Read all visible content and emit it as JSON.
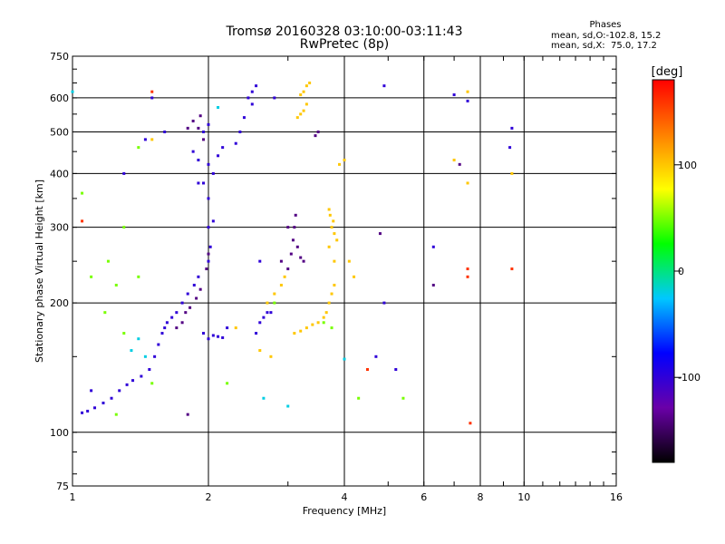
{
  "chart_data": {
    "type": "scatter",
    "title": "Tromsø 20160328 03:10:00-03:11:43",
    "subtitle": "RwPretec (8p)",
    "xlabel": "Frequency [MHz]",
    "ylabel": "Stationary phase Virtual Height [km]",
    "x_scale": "log",
    "y_scale": "log",
    "xlim": [
      1,
      16
    ],
    "ylim": [
      75,
      750
    ],
    "x_ticks": [
      1,
      2,
      4,
      6,
      8,
      10,
      16
    ],
    "x_gridlines": [
      2,
      4,
      6,
      8,
      10
    ],
    "y_ticks": [
      75,
      100,
      200,
      300,
      400,
      500,
      600,
      750
    ],
    "y_gridlines": [
      100,
      200,
      300,
      400,
      500,
      600
    ],
    "grid": true,
    "legend": {
      "title": "Phases",
      "lines": [
        "mean, sd,O:-102.8, 15.2",
        "mean, sd,X:  75.0, 17.2"
      ]
    },
    "colorbar": {
      "label": "[deg]",
      "ticks": [
        100,
        0,
        -100
      ],
      "range": [
        -180,
        180
      ],
      "colors": [
        "#000000",
        "#6a00a8",
        "#0000ff",
        "#00c8ff",
        "#00ff00",
        "#ffff00",
        "#ff8000",
        "#ff0000"
      ]
    },
    "series": [
      {
        "phase": -100,
        "points": [
          [
            1.05,
            111
          ],
          [
            1.08,
            112
          ],
          [
            1.12,
            114
          ],
          [
            1.17,
            117
          ],
          [
            1.22,
            120
          ],
          [
            1.27,
            125
          ],
          [
            1.32,
            129
          ],
          [
            1.36,
            132
          ],
          [
            1.42,
            135
          ],
          [
            1.48,
            140
          ],
          [
            1.52,
            150
          ],
          [
            1.55,
            160
          ],
          [
            1.58,
            170
          ],
          [
            1.6,
            175
          ],
          [
            1.62,
            180
          ],
          [
            1.66,
            185
          ],
          [
            1.7,
            190
          ],
          [
            1.75,
            200
          ],
          [
            1.8,
            210
          ],
          [
            1.86,
            220
          ],
          [
            1.9,
            230
          ],
          [
            1.95,
            170
          ],
          [
            2.0,
            165
          ],
          [
            2.05,
            168
          ],
          [
            2.1,
            167
          ],
          [
            2.15,
            166
          ],
          [
            2.2,
            175
          ],
          [
            2.0,
            250
          ],
          [
            2.02,
            270
          ],
          [
            2.0,
            300
          ],
          [
            2.05,
            310
          ],
          [
            2.0,
            350
          ],
          [
            1.95,
            380
          ],
          [
            2.0,
            420
          ],
          [
            2.05,
            400
          ],
          [
            2.1,
            440
          ],
          [
            2.15,
            460
          ],
          [
            1.9,
            430
          ],
          [
            1.85,
            450
          ],
          [
            1.95,
            500
          ],
          [
            2.0,
            520
          ],
          [
            2.3,
            470
          ],
          [
            2.35,
            500
          ],
          [
            2.4,
            540
          ],
          [
            2.45,
            600
          ],
          [
            2.5,
            620
          ],
          [
            2.55,
            640
          ],
          [
            2.5,
            580
          ],
          [
            2.6,
            250
          ],
          [
            2.55,
            170
          ],
          [
            2.6,
            180
          ],
          [
            2.65,
            185
          ],
          [
            2.7,
            190
          ],
          [
            2.75,
            190
          ],
          [
            1.5,
            600
          ],
          [
            1.3,
            400
          ],
          [
            1.1,
            125
          ],
          [
            2.8,
            600
          ],
          [
            4.9,
            640
          ],
          [
            4.9,
            200
          ],
          [
            7.0,
            610
          ],
          [
            7.5,
            590
          ],
          [
            9.4,
            510
          ],
          [
            9.3,
            460
          ],
          [
            1.6,
            500
          ],
          [
            1.45,
            480
          ],
          [
            4.7,
            150
          ],
          [
            6.3,
            270
          ],
          [
            5.2,
            140
          ],
          [
            1.9,
            380
          ]
        ]
      },
      {
        "phase": -140,
        "points": [
          [
            1.7,
            175
          ],
          [
            1.75,
            180
          ],
          [
            1.78,
            190
          ],
          [
            1.82,
            195
          ],
          [
            1.88,
            205
          ],
          [
            1.92,
            215
          ],
          [
            1.98,
            240
          ],
          [
            2.0,
            260
          ],
          [
            1.95,
            480
          ],
          [
            1.9,
            510
          ],
          [
            1.85,
            530
          ],
          [
            1.92,
            545
          ],
          [
            1.8,
            510
          ],
          [
            3.0,
            240
          ],
          [
            3.05,
            260
          ],
          [
            3.08,
            280
          ],
          [
            3.1,
            300
          ],
          [
            3.12,
            320
          ],
          [
            3.15,
            270
          ],
          [
            3.2,
            255
          ],
          [
            3.25,
            250
          ],
          [
            2.9,
            250
          ],
          [
            3.0,
            300
          ],
          [
            3.45,
            490
          ],
          [
            3.5,
            500
          ],
          [
            4.8,
            290
          ],
          [
            6.3,
            220
          ],
          [
            7.2,
            420
          ],
          [
            1.8,
            110
          ]
        ]
      },
      {
        "phase": 100,
        "points": [
          [
            3.2,
            610
          ],
          [
            3.25,
            620
          ],
          [
            3.3,
            640
          ],
          [
            3.35,
            650
          ],
          [
            3.3,
            580
          ],
          [
            3.25,
            560
          ],
          [
            3.2,
            550
          ],
          [
            3.15,
            540
          ],
          [
            3.7,
            330
          ],
          [
            3.72,
            320
          ],
          [
            3.75,
            300
          ],
          [
            3.78,
            310
          ],
          [
            3.8,
            290
          ],
          [
            3.85,
            280
          ],
          [
            3.7,
            270
          ],
          [
            3.8,
            250
          ],
          [
            3.1,
            170
          ],
          [
            3.2,
            172
          ],
          [
            3.3,
            175
          ],
          [
            3.4,
            178
          ],
          [
            3.5,
            180
          ],
          [
            3.6,
            185
          ],
          [
            3.65,
            190
          ],
          [
            3.7,
            200
          ],
          [
            3.75,
            210
          ],
          [
            3.8,
            220
          ],
          [
            2.7,
            200
          ],
          [
            2.8,
            210
          ],
          [
            2.9,
            220
          ],
          [
            2.95,
            230
          ],
          [
            4.1,
            250
          ],
          [
            4.2,
            230
          ],
          [
            4.0,
            430
          ],
          [
            3.9,
            420
          ],
          [
            2.6,
            155
          ],
          [
            2.75,
            150
          ],
          [
            2.3,
            175
          ],
          [
            7.5,
            620
          ],
          [
            7.5,
            380
          ],
          [
            7.0,
            430
          ],
          [
            9.4,
            400
          ],
          [
            1.5,
            480
          ]
        ]
      },
      {
        "phase": 50,
        "points": [
          [
            1.4,
            460
          ],
          [
            1.3,
            300
          ],
          [
            1.2,
            250
          ],
          [
            1.25,
            220
          ],
          [
            1.1,
            230
          ],
          [
            1.05,
            360
          ],
          [
            1.18,
            190
          ],
          [
            1.4,
            230
          ],
          [
            1.5,
            130
          ],
          [
            2.8,
            200
          ],
          [
            3.6,
            180
          ],
          [
            3.75,
            175
          ],
          [
            4.3,
            120
          ],
          [
            5.4,
            120
          ],
          [
            1.3,
            170
          ],
          [
            2.2,
            130
          ],
          [
            1.25,
            110
          ]
        ]
      },
      {
        "phase": 160,
        "points": [
          [
            1.05,
            310
          ],
          [
            7.5,
            240
          ],
          [
            9.4,
            240
          ],
          [
            7.6,
            105
          ],
          [
            4.5,
            140
          ],
          [
            1.5,
            620
          ],
          [
            7.5,
            230
          ]
        ]
      },
      {
        "phase": -20,
        "points": [
          [
            1.4,
            165
          ],
          [
            1.45,
            150
          ],
          [
            1.35,
            155
          ],
          [
            4.0,
            148
          ],
          [
            3.0,
            115
          ],
          [
            2.65,
            120
          ],
          [
            1.0,
            620
          ],
          [
            2.1,
            570
          ]
        ]
      }
    ]
  }
}
